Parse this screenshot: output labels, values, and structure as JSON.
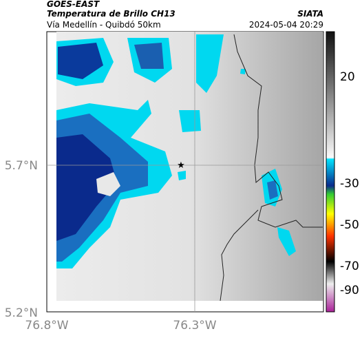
{
  "header": {
    "product": "GOES-EAST",
    "title": "Temperatura de Brillo CH13",
    "subtitle": "Vía Medellín - Quibdó 50km",
    "source": "SIATA",
    "timestamp": "2024-05-04 20:29"
  },
  "map": {
    "lat_labels": [
      "5.7°N",
      "5.2°N"
    ],
    "lon_labels": [
      "76.8°W",
      "76.3°W"
    ]
  },
  "colorbar": {
    "ticks": [
      "20",
      "-30",
      "-50",
      "-70",
      "-90"
    ]
  }
}
